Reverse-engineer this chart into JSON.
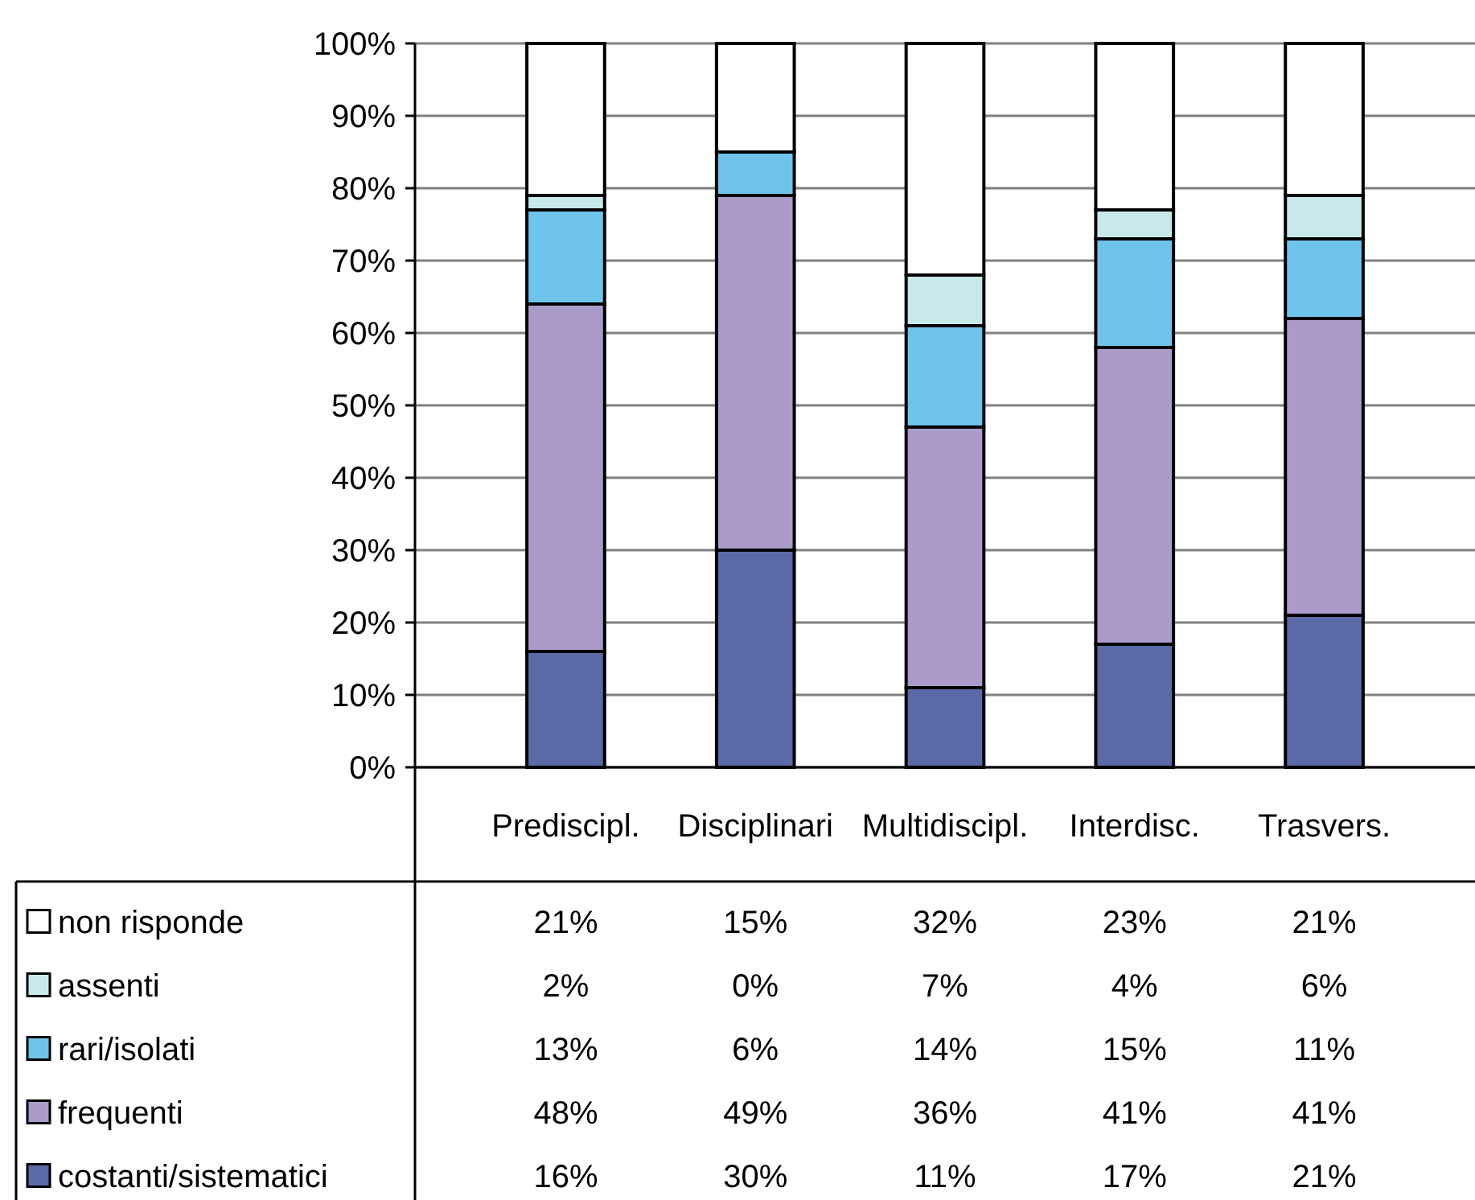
{
  "chart_data": {
    "type": "bar",
    "stacked": true,
    "categories": [
      "Prediscipl.",
      "Disciplinari",
      "Multidiscipl.",
      "Interdisc.",
      "Trasvers."
    ],
    "ylim": [
      0,
      100
    ],
    "yticks": [
      {
        "value": 0,
        "label": "0%"
      },
      {
        "value": 10,
        "label": "10%"
      },
      {
        "value": 20,
        "label": "20%"
      },
      {
        "value": 30,
        "label": "30%"
      },
      {
        "value": 40,
        "label": "40%"
      },
      {
        "value": 50,
        "label": "50%"
      },
      {
        "value": 60,
        "label": "60%"
      },
      {
        "value": 70,
        "label": "70%"
      },
      {
        "value": 80,
        "label": "80%"
      },
      {
        "value": 90,
        "label": "90%"
      },
      {
        "value": 100,
        "label": "100%"
      }
    ],
    "grid": "y",
    "legend": "bottom left",
    "series": [
      {
        "name": "costanti/sistematici",
        "color": "#5a6aa6",
        "values": [
          16,
          30,
          11,
          17,
          21
        ],
        "value_labels": [
          "16%",
          "30%",
          "11%",
          "17%",
          "21%"
        ]
      },
      {
        "name": "frequenti",
        "color": "#ab9bcb",
        "values": [
          48,
          49,
          36,
          41,
          41
        ],
        "value_labels": [
          "48%",
          "49%",
          "36%",
          "41%",
          "41%"
        ]
      },
      {
        "name": "rari/isolati",
        "color": "#6fc4ec",
        "values": [
          13,
          6,
          14,
          15,
          11
        ],
        "value_labels": [
          "13%",
          "6%",
          "14%",
          "15%",
          "11%"
        ]
      },
      {
        "name": "assenti",
        "color": "#c9e8ea",
        "values": [
          2,
          0,
          7,
          4,
          6
        ],
        "value_labels": [
          "2%",
          "0%",
          "7%",
          "4%",
          "6%"
        ]
      },
      {
        "name": "non risponde",
        "color": "#ffffff",
        "values": [
          21,
          15,
          32,
          23,
          21
        ],
        "value_labels": [
          "21%",
          "15%",
          "32%",
          "23%",
          "21%"
        ]
      }
    ]
  }
}
